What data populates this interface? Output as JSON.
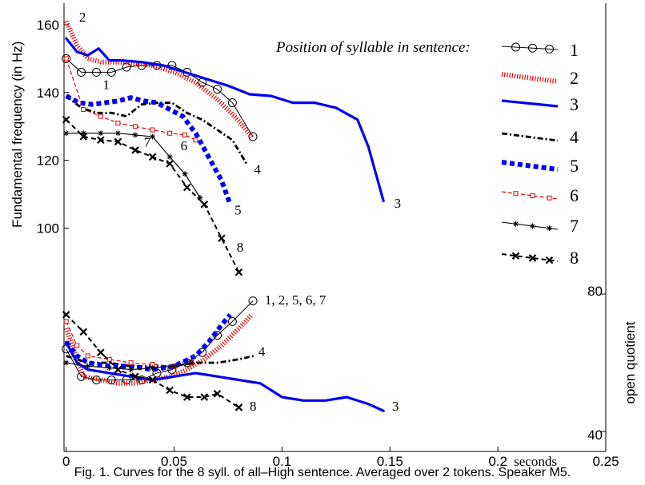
{
  "caption": "Fig. 1.  Curves for the 8 syll. of all–High sentence. Averaged over 2 tokens. Speaker M5.",
  "chart_data": {
    "type": "line",
    "x_axis": {
      "label": "seconds",
      "xlim": [
        -0.001,
        0.25
      ],
      "ticks": [
        0,
        0.05,
        0.1,
        0.15,
        0.2,
        0.25
      ],
      "tick_labels": [
        "0",
        "0.05",
        "0.1",
        "0.15",
        "0.2",
        "0.25"
      ]
    },
    "f0_axis": {
      "label": "Fundamental frequency (in Hz)",
      "ylim": [
        86,
        164
      ],
      "ticks": [
        100,
        120,
        140,
        160
      ],
      "tick_labels": [
        "100",
        "120",
        "140",
        "160"
      ]
    },
    "oq_axis": {
      "label": "open quotient",
      "ylim": [
        40,
        80
      ],
      "ticks": [
        40,
        80
      ],
      "tick_labels": [
        "40",
        "80"
      ]
    },
    "legend": {
      "title": "Position of syllable in sentence:",
      "placement": "right",
      "entries": [
        "1",
        "2",
        "3",
        "4",
        "5",
        "6",
        "7",
        "8"
      ]
    },
    "f0_series": [
      {
        "name": "1",
        "style": "o",
        "label": "1",
        "label_at": [
          0.017,
          141
        ],
        "x": [
          0,
          0.007,
          0.014,
          0.021,
          0.028,
          0.035,
          0.042,
          0.049,
          0.056,
          0.063,
          0.07,
          0.077,
          0.0865
        ],
        "y": [
          150,
          146,
          146,
          146,
          147.5,
          148,
          148,
          148,
          146,
          143,
          141,
          137,
          127
        ]
      },
      {
        "name": "2",
        "style": "red-dotted",
        "label": "2",
        "label_at": [
          0.006,
          161
        ],
        "x": [
          0,
          0.005,
          0.01,
          0.016,
          0.024,
          0.032,
          0.04,
          0.05,
          0.06,
          0.07,
          0.078,
          0.086
        ],
        "y": [
          161,
          154,
          150,
          149,
          149,
          148.5,
          148,
          146,
          143,
          138,
          133,
          127
        ]
      },
      {
        "name": "3",
        "style": "blue-solid",
        "label": "3",
        "label_at": [
          0.152,
          106
        ],
        "x": [
          0,
          0.005,
          0.01,
          0.015,
          0.02,
          0.025,
          0.035,
          0.045,
          0.055,
          0.065,
          0.075,
          0.085,
          0.095,
          0.105,
          0.115,
          0.125,
          0.135,
          0.14,
          0.147
        ],
        "y": [
          156,
          152,
          151,
          153,
          149.5,
          149.5,
          149,
          148,
          146,
          144,
          142,
          139.5,
          139,
          137,
          137,
          135.5,
          132,
          124,
          108
        ]
      },
      {
        "name": "4",
        "style": "black-dashdot",
        "label": "4",
        "label_at": [
          0.087,
          116
        ],
        "x": [
          0,
          0.007,
          0.014,
          0.021,
          0.028,
          0.035,
          0.042,
          0.049,
          0.056,
          0.063,
          0.07,
          0.077,
          0.084
        ],
        "y": [
          139,
          135.5,
          134,
          134,
          133,
          136.5,
          137,
          137,
          134,
          132,
          129,
          126,
          118.5
        ]
      },
      {
        "name": "5",
        "style": "blue-thick-dashed",
        "label": "5",
        "label_at": [
          0.078,
          104
        ],
        "x": [
          0,
          0.006,
          0.012,
          0.018,
          0.024,
          0.03,
          0.036,
          0.042,
          0.048,
          0.054,
          0.06,
          0.066,
          0.072,
          0.076
        ],
        "y": [
          139,
          137,
          136.5,
          137,
          137.5,
          138.5,
          137.5,
          137,
          135,
          133,
          128,
          121,
          114,
          107
        ]
      },
      {
        "name": "6",
        "style": "red-dashed-square",
        "label": "6",
        "label_at": [
          0.053,
          123
        ],
        "x": [
          0,
          0.008,
          0.016,
          0.024,
          0.032,
          0.04,
          0.048,
          0.055,
          0.06
        ],
        "y": [
          150,
          135,
          133,
          131,
          130,
          129,
          128,
          127.5,
          126
        ]
      },
      {
        "name": "7",
        "style": "black-solid-star",
        "label": "7",
        "label_at": [
          0.036,
          124
        ],
        "x": [
          0,
          0.008,
          0.016,
          0.024,
          0.032,
          0.04,
          0.048,
          0.055,
          0.062
        ],
        "y": [
          128,
          128,
          128,
          128,
          127.5,
          127,
          121,
          116,
          109
        ]
      },
      {
        "name": "8",
        "style": "black-dashed-x",
        "label": "8",
        "label_at": [
          0.079,
          93
        ],
        "x": [
          0,
          0.008,
          0.016,
          0.024,
          0.032,
          0.04,
          0.048,
          0.056,
          0.064,
          0.072,
          0.08
        ],
        "y": [
          132,
          127,
          126,
          125.5,
          123,
          121,
          119,
          112,
          107,
          97,
          87
        ]
      }
    ],
    "oq_series": [
      {
        "name": "1",
        "style": "o",
        "x": [
          0,
          0.007,
          0.014,
          0.021,
          0.028,
          0.035,
          0.042,
          0.049,
          0.056,
          0.063,
          0.07,
          0.077,
          0.0865
        ],
        "y": [
          64,
          56,
          55,
          55,
          55,
          55,
          57,
          58,
          60,
          63,
          68,
          72,
          78
        ]
      },
      {
        "name": "2",
        "style": "red-dotted",
        "x": [
          0,
          0.008,
          0.016,
          0.024,
          0.032,
          0.04,
          0.048,
          0.056,
          0.064,
          0.072,
          0.08,
          0.086
        ],
        "y": [
          70,
          56,
          55,
          54,
          54,
          55,
          56,
          58,
          61,
          65,
          70,
          74
        ]
      },
      {
        "name": "3",
        "style": "blue-solid",
        "x": [
          0,
          0.005,
          0.01,
          0.02,
          0.03,
          0.04,
          0.05,
          0.06,
          0.07,
          0.08,
          0.09,
          0.1,
          0.11,
          0.12,
          0.13,
          0.14,
          0.147
        ],
        "y": [
          66,
          60,
          58,
          57,
          56,
          55,
          56,
          57,
          56,
          55,
          54,
          50,
          49,
          49,
          50,
          48,
          46
        ]
      },
      {
        "name": "4",
        "style": "black-dashdot",
        "x": [
          0,
          0.01,
          0.02,
          0.03,
          0.04,
          0.05,
          0.06,
          0.07,
          0.08,
          0.087
        ],
        "y": [
          62,
          60,
          60,
          59,
          59,
          59,
          60,
          60,
          61,
          62
        ]
      },
      {
        "name": "5",
        "style": "blue-thick-dashed",
        "x": [
          0,
          0.005,
          0.01,
          0.02,
          0.03,
          0.04,
          0.05,
          0.06,
          0.066,
          0.072,
          0.076
        ],
        "y": [
          66,
          62,
          60,
          59,
          59,
          58,
          59,
          62,
          66,
          71,
          74
        ]
      },
      {
        "name": "6",
        "style": "red-dashed-square",
        "x": [
          0,
          0.005,
          0.01,
          0.02,
          0.03,
          0.04,
          0.05,
          0.058
        ],
        "y": [
          72,
          65,
          62,
          61,
          60,
          59.5,
          59,
          60
        ]
      },
      {
        "name": "7",
        "style": "black-solid-star",
        "x": [
          0,
          0.01,
          0.02,
          0.03,
          0.04,
          0.05,
          0.058
        ],
        "y": [
          60,
          59,
          58.5,
          58,
          58.5,
          59,
          60
        ]
      },
      {
        "name": "8",
        "style": "black-dashed-x",
        "x": [
          0,
          0.008,
          0.016,
          0.024,
          0.032,
          0.04,
          0.048,
          0.056,
          0.064,
          0.07,
          0.08
        ],
        "y": [
          74,
          69,
          63,
          58,
          56,
          55,
          52,
          50,
          50,
          51,
          47
        ]
      }
    ],
    "oq_labels": [
      {
        "text": "1, 2, 5, 6, 7",
        "at": [
          0.092,
          77
        ]
      },
      {
        "text": "4",
        "at": [
          0.089,
          62
        ]
      },
      {
        "text": "3",
        "at": [
          0.151,
          46
        ]
      },
      {
        "text": "8",
        "at": [
          0.085,
          46
        ]
      }
    ],
    "grid": false
  }
}
